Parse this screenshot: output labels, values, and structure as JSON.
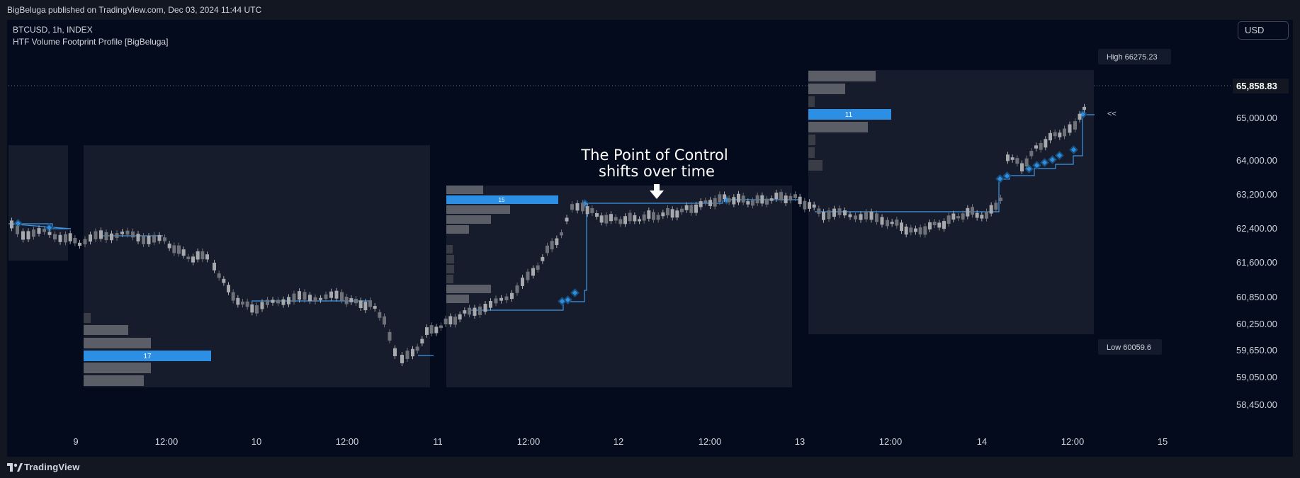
{
  "header": {
    "published_text": "BigBeluga published on TradingView.com, Dec 03, 2024 11:44 UTC"
  },
  "legend": {
    "symbol_line": "BTCUSD, 1h, INDEX",
    "indicator_name": "HTF Volume Footprint Profile [BigBeluga]"
  },
  "currency_button": {
    "label": "USD"
  },
  "price_axis": {
    "ticks": [
      "65,000.00",
      "64,000.00",
      "63,200.00",
      "62,400.00",
      "61,600.00",
      "60,850.00",
      "60,250.00",
      "59,650.00",
      "59,050.00",
      "58,450.00"
    ],
    "last_price": "65,858.83"
  },
  "time_axis": {
    "ticks": [
      "9",
      "12:00",
      "10",
      "12:00",
      "11",
      "12:00",
      "12",
      "12:00",
      "13",
      "12:00",
      "14",
      "12:00",
      "15"
    ]
  },
  "annotation": {
    "line1": "The Point of Control",
    "line2": "shifts over time"
  },
  "labels": {
    "high": "High 66275.23",
    "low": "Low 60059.6",
    "collapse": "<<"
  },
  "poc_counts": {
    "profile1": "17",
    "profile2": "15",
    "profile3": "11"
  },
  "footer": {
    "brand": "TradingView"
  },
  "colors": {
    "background": "#040b1c",
    "profile_box": "#161c2c",
    "poc_bar": "#2d8fe3",
    "volume_bar": "#5b5e66",
    "candle": "#a7a9ad",
    "poc_line": "#3f97e6"
  }
}
